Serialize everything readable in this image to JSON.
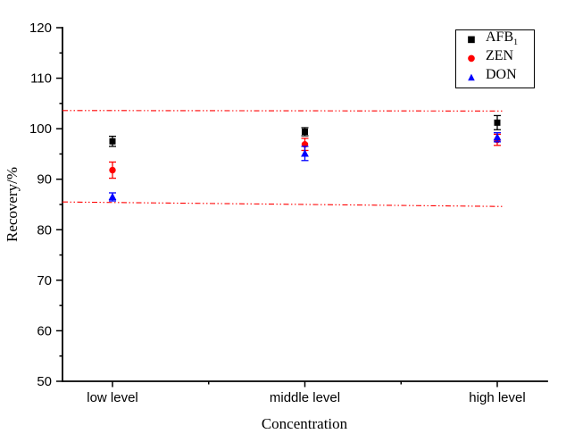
{
  "chart_data": {
    "type": "scatter",
    "title": "",
    "categories": [
      "low level",
      "middle level",
      "high level"
    ],
    "xlabel": "Concentration",
    "ylabel": "Recovery/%",
    "ylim": [
      50,
      120
    ],
    "yticks": [
      50,
      60,
      70,
      80,
      90,
      100,
      110,
      120
    ],
    "ytick_minor_step": 5,
    "grid": false,
    "legend_position": "top-right",
    "series": [
      {
        "name": "AFB1",
        "marker": "square",
        "color": "#000000",
        "values": [
          97.5,
          99.4,
          101.2
        ],
        "errors": [
          1.0,
          0.8,
          1.4
        ]
      },
      {
        "name": "ZEN",
        "marker": "circle",
        "color": "#ff0000",
        "values": [
          91.8,
          96.9,
          97.8
        ],
        "errors": [
          1.6,
          1.2,
          1.1
        ]
      },
      {
        "name": "DON",
        "marker": "triangle",
        "color": "#0000ff",
        "values": [
          86.5,
          95.1,
          98.3
        ],
        "errors": [
          0.8,
          1.4,
          0.9
        ]
      }
    ],
    "reference_lines": [
      {
        "name": "upper-limit",
        "color": "#ff0000",
        "style": "dash-dot-dot",
        "value_start": 103.6,
        "value_end": 103.5
      },
      {
        "name": "lower-limit",
        "color": "#ff0000",
        "style": "dash-dot-dot",
        "value_start": 85.5,
        "value_end": 84.6
      }
    ]
  },
  "legend": {
    "items": [
      {
        "text": "AFB",
        "sub": "1",
        "glyph": "■",
        "marker": "square",
        "color": "#000000"
      },
      {
        "text": "ZEN",
        "sub": "",
        "glyph": "●",
        "marker": "circle",
        "color": "#ff0000"
      },
      {
        "text": "DON",
        "sub": "",
        "glyph": "▲",
        "marker": "triangle",
        "color": "#0000ff"
      }
    ]
  }
}
